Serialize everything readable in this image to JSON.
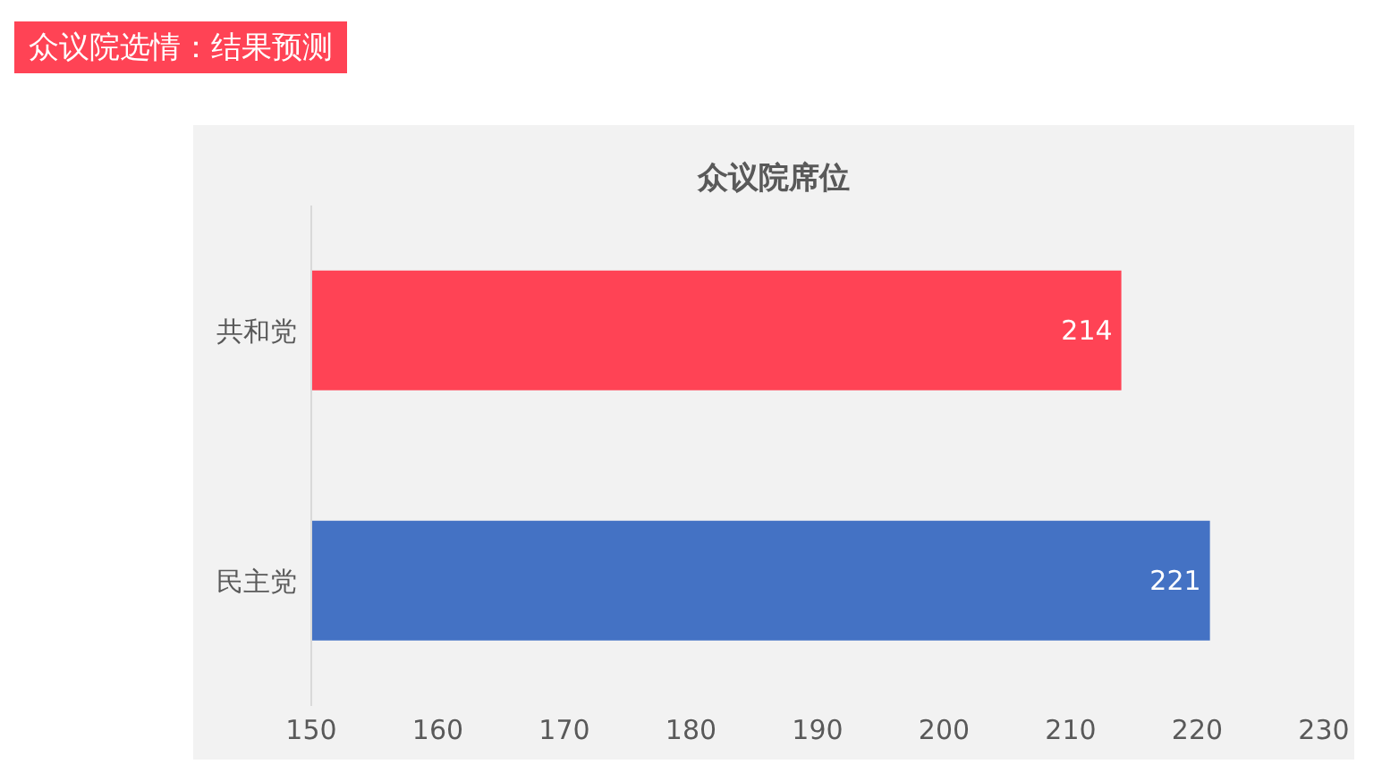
{
  "chart_data": {
    "type": "bar",
    "orientation": "horizontal",
    "subtitle": "众议院选情：结果预测",
    "title": "众议院席位",
    "categories": [
      "共和党",
      "民主党"
    ],
    "values": [
      214,
      221
    ],
    "colors": [
      "#ff4355",
      "#4472c4"
    ],
    "xlim": [
      150,
      230
    ],
    "xticks": [
      150,
      160,
      170,
      180,
      190,
      200,
      210,
      220,
      230
    ],
    "data_labels": true,
    "grid": false,
    "legend": false
  }
}
